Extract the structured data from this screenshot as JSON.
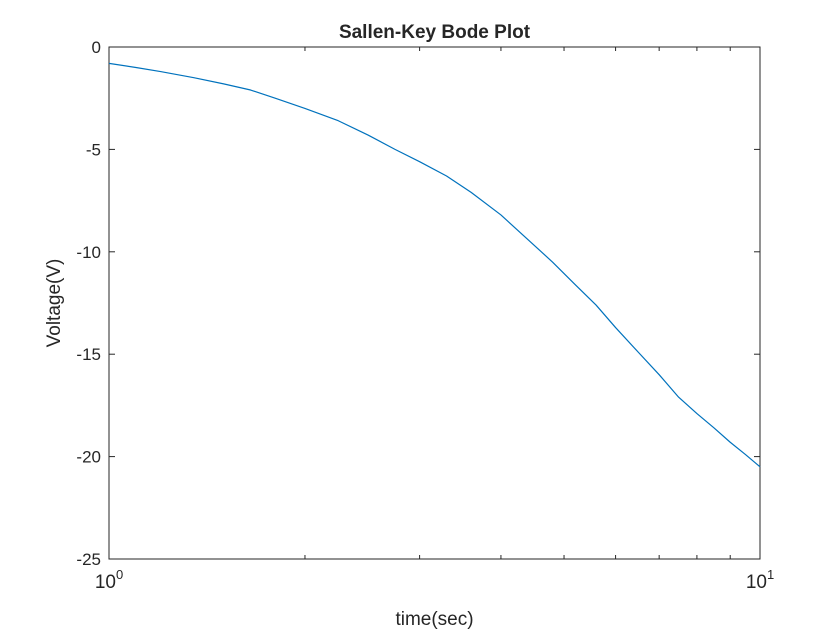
{
  "chart_data": {
    "type": "line",
    "title": "Sallen-Key Bode Plot",
    "xlabel": "time(sec)",
    "ylabel": "Voltage(V)",
    "xscale": "log",
    "xlim": [
      1,
      10
    ],
    "ylim": [
      -25,
      0
    ],
    "x_ticks": [
      {
        "base": "10",
        "exp": "0",
        "value": 1
      },
      {
        "base": "10",
        "exp": "1",
        "value": 10
      }
    ],
    "y_ticks": [
      0,
      -5,
      -10,
      -15,
      -20,
      -25
    ],
    "y_tick_labels": [
      "0",
      "-5",
      "-10",
      "-15",
      "-20",
      "-25"
    ],
    "grid": false,
    "line_color": "#0072BD",
    "series": [
      {
        "x": [
          1.0,
          1.1,
          1.2,
          1.35,
          1.5,
          1.65,
          1.8,
          2.0,
          2.25,
          2.5,
          2.75,
          3.0,
          3.3,
          3.6,
          4.0,
          4.4,
          4.8,
          5.2,
          5.6,
          6.0,
          6.5,
          7.0,
          7.5,
          8.0,
          8.5,
          9.0,
          9.5,
          10.0
        ],
        "y": [
          -0.8,
          -1.0,
          -1.2,
          -1.5,
          -1.8,
          -2.1,
          -2.5,
          -3.0,
          -3.6,
          -4.3,
          -5.0,
          -5.6,
          -6.3,
          -7.1,
          -8.2,
          -9.4,
          -10.5,
          -11.6,
          -12.6,
          -13.7,
          -14.9,
          -16.0,
          -17.1,
          -17.9,
          -18.6,
          -19.3,
          -19.9,
          -20.5
        ]
      }
    ]
  }
}
